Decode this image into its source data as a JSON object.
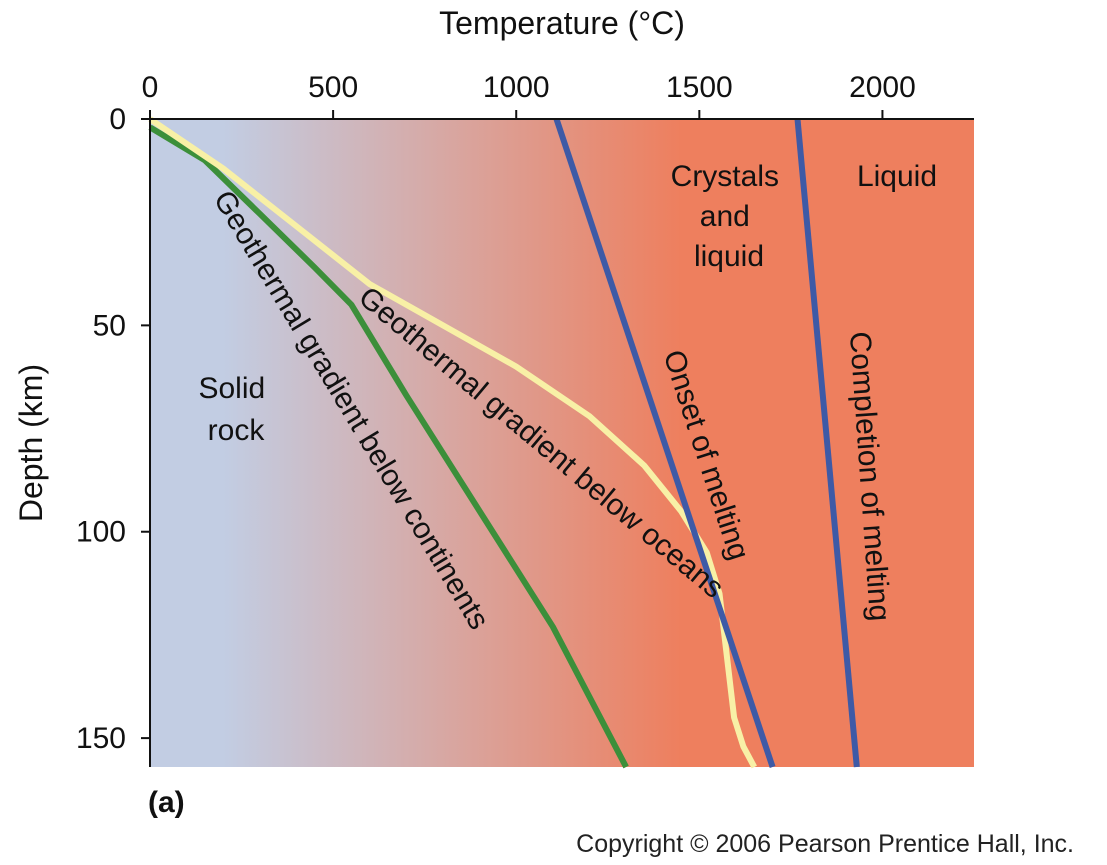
{
  "chart_data": {
    "type": "line",
    "title": "",
    "xlabel": "Temperature (°C)",
    "ylabel": "Depth (km)",
    "xlim": [
      0,
      2250
    ],
    "ylim": [
      0,
      157
    ],
    "y_inverted": true,
    "x_axis_position": "top",
    "x_ticks": [
      0,
      500,
      1000,
      1500,
      2000
    ],
    "x_tick_labels": [
      "0",
      "500",
      "1000",
      "1500",
      "2000"
    ],
    "y_ticks": [
      0,
      50,
      100,
      150
    ],
    "y_tick_labels": [
      "0",
      "50",
      "100",
      "150"
    ],
    "grid": false,
    "legend": "none",
    "background_gradient": {
      "from_color": "#c2cde3",
      "to_color": "#ee7f5e",
      "from_temp": 200,
      "to_temp": 1450
    },
    "series": [
      {
        "name": "Geothermal gradient below continents",
        "color": "#3c8f3a",
        "points": [
          [
            0,
            2
          ],
          [
            150,
            10
          ],
          [
            300,
            23
          ],
          [
            450,
            36
          ],
          [
            550,
            45
          ],
          [
            700,
            67
          ],
          [
            900,
            95
          ],
          [
            1100,
            123
          ],
          [
            1300,
            157
          ]
        ]
      },
      {
        "name": "Geothermal gradient below oceans",
        "color": "#f8f0a6",
        "points": [
          [
            0,
            0
          ],
          [
            200,
            12
          ],
          [
            400,
            26
          ],
          [
            600,
            40
          ],
          [
            800,
            50
          ],
          [
            1000,
            60
          ],
          [
            1200,
            72
          ],
          [
            1350,
            84
          ],
          [
            1450,
            95
          ],
          [
            1520,
            105
          ],
          [
            1555,
            115
          ],
          [
            1575,
            130
          ],
          [
            1595,
            145
          ],
          [
            1620,
            152
          ],
          [
            1650,
            157
          ]
        ]
      },
      {
        "name": "Onset of melting",
        "color": "#3e5aa6",
        "points": [
          [
            1110,
            0
          ],
          [
            1700,
            157
          ]
        ]
      },
      {
        "name": "Completion of melting",
        "color": "#3e5aa6",
        "points": [
          [
            1768,
            0
          ],
          [
            1930,
            157
          ]
        ]
      }
    ],
    "region_labels": {
      "solid_rock": [
        "Solid",
        "rock"
      ],
      "crystals_and_liquid": [
        "Crystals",
        "and",
        "liquid"
      ],
      "liquid": [
        "Liquid"
      ]
    },
    "panel_label": "(a)"
  },
  "footer": {
    "copyright": "Copyright © 2006 Pearson Prentice Hall, Inc."
  }
}
